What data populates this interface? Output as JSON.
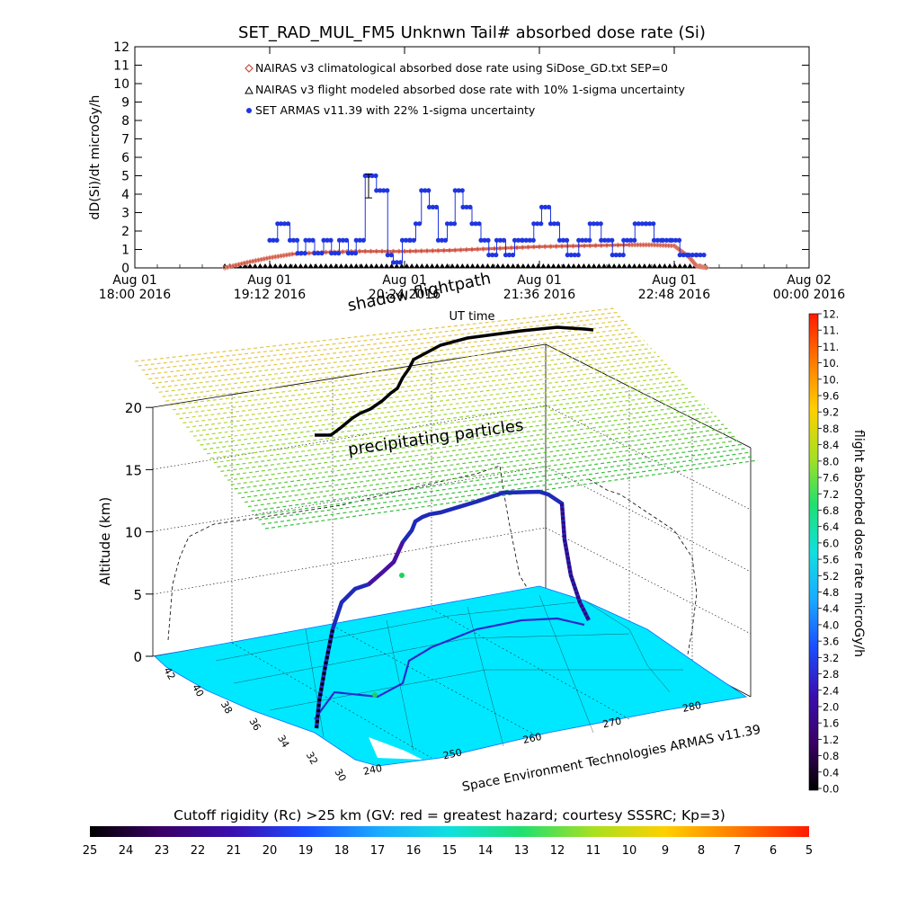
{
  "title": "SET_RAD_MUL_FM5 Unknwn Tail#  absorbed dose rate (Si)",
  "chart_data": [
    {
      "type": "line",
      "ylabel": "dD(Si)/dt microGy/h",
      "xlabel": "UT time",
      "ylim": [
        0,
        12
      ],
      "y_ticks": [
        "0",
        "1",
        "2",
        "3",
        "4",
        "5",
        "6",
        "7",
        "8",
        "9",
        "10",
        "11",
        "12"
      ],
      "x_ticks": [
        {
          "line1": "Aug 01",
          "line2": "18:00 2016"
        },
        {
          "line1": "Aug 01",
          "line2": "19:12 2016"
        },
        {
          "line1": "Aug 01",
          "line2": "20:24 2016"
        },
        {
          "line1": "Aug 01",
          "line2": "21:36 2016"
        },
        {
          "line1": "Aug 01",
          "line2": "22:48 2016"
        },
        {
          "line1": "Aug 02",
          "line2": "00:00 2016"
        }
      ],
      "x_range_hours": [
        18.0,
        24.0
      ],
      "legend": [
        "NAIRAS v3 climatological absorbed dose rate using SiDose_GD.txt SEP=0",
        "NAIRAS v3 flight modeled absorbed dose rate with 10% 1-sigma uncertainty",
        "SET ARMAS v11.39 with 22% 1-sigma uncertainty"
      ],
      "legend_placement": "top-center",
      "series": [
        {
          "name": "NAIRAS v3 climatological absorbed dose rate using SiDose_GD.txt SEP=0",
          "color": "#c84b3c",
          "x": [
            18.8,
            19.0,
            19.2,
            19.4,
            19.7,
            20.0,
            20.4,
            20.8,
            21.2,
            21.6,
            22.0,
            22.4,
            22.6,
            22.8,
            22.93,
            23.0,
            23.1
          ],
          "y": [
            0.0,
            0.3,
            0.55,
            0.75,
            0.85,
            0.9,
            0.9,
            0.95,
            1.05,
            1.15,
            1.2,
            1.25,
            1.25,
            1.2,
            0.6,
            0.1,
            0.0
          ]
        },
        {
          "name": "NAIRAS v3 flight modeled absorbed dose rate with 10% 1-sigma uncertainty",
          "color": "#000000",
          "x": [
            18.8,
            23.1
          ],
          "y": [
            0.0,
            0.0
          ]
        },
        {
          "name": "SET ARMAS v11.39 with 22% 1-sigma uncertainty",
          "color": "#1f35e0",
          "x": [
            19.2,
            19.27,
            19.3,
            19.38,
            19.45,
            19.52,
            19.6,
            19.68,
            19.75,
            19.82,
            19.9,
            19.97,
            20.05,
            20.08,
            20.15,
            20.25,
            20.3,
            20.38,
            20.45,
            20.5,
            20.55,
            20.62,
            20.7,
            20.78,
            20.85,
            20.92,
            21.0,
            21.08,
            21.15,
            21.22,
            21.3,
            21.38,
            21.45,
            21.55,
            21.62,
            21.7,
            21.78,
            21.85,
            21.95,
            22.05,
            22.15,
            22.25,
            22.35,
            22.45,
            22.55,
            22.62,
            22.7,
            22.78,
            22.85,
            22.93,
            23.0
          ],
          "y": [
            1.5,
            2.4,
            2.4,
            1.5,
            0.8,
            1.5,
            0.8,
            1.5,
            0.8,
            1.5,
            0.8,
            1.5,
            5.0,
            5.0,
            4.2,
            0.7,
            0.3,
            1.5,
            1.5,
            2.4,
            4.2,
            3.3,
            1.5,
            2.4,
            4.2,
            3.3,
            2.4,
            1.5,
            0.7,
            1.5,
            0.7,
            1.5,
            1.5,
            2.4,
            3.3,
            2.4,
            1.5,
            0.7,
            1.5,
            2.4,
            1.5,
            0.7,
            1.5,
            2.4,
            2.4,
            1.5,
            1.5,
            1.5,
            0.7,
            0.7,
            0.7
          ]
        }
      ]
    },
    {
      "type": "3d-flight-track",
      "ylabel": "Altitude (km)",
      "z_ticks": [
        "0",
        "5",
        "10",
        "15",
        "20"
      ],
      "lat_ticks": [
        "42",
        "40",
        "38",
        "36",
        "34",
        "32",
        "30"
      ],
      "lon_ticks": [
        "240",
        "250",
        "260",
        "270",
        "280"
      ],
      "annotations": [
        "shadow flightpath",
        "precipitating particles",
        "Space Environment Technologies ARMAS v11.39"
      ],
      "colorbar": {
        "label": "flight absorbed dose rate microGy/h",
        "ticks": [
          "12.",
          "11.",
          "11.",
          "10.",
          "10.",
          "9.6",
          "9.2",
          "8.8",
          "8.4",
          "8.0",
          "7.6",
          "7.2",
          "6.8",
          "6.4",
          "6.0",
          "5.6",
          "5.2",
          "4.8",
          "4.4",
          "4.0",
          "3.6",
          "3.2",
          "2.8",
          "2.4",
          "2.0",
          "1.6",
          "1.2",
          "0.8",
          "0.4",
          "0.0"
        ]
      }
    },
    {
      "type": "colorbar",
      "title": "Cutoff rigidity (Rc) >25 km (GV: red = greatest hazard; courtesy SSSRC; Kp=3)",
      "ticks": [
        "25",
        "24",
        "23",
        "22",
        "21",
        "20",
        "19",
        "18",
        "17",
        "16",
        "15",
        "14",
        "13",
        "12",
        "11",
        "10",
        "9",
        "8",
        "7",
        "6",
        "5"
      ]
    }
  ]
}
